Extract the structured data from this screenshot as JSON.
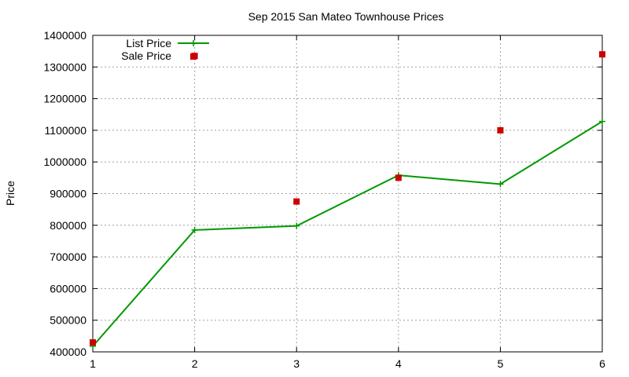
{
  "chart_data": {
    "type": "line",
    "title": "Sep 2015 San Mateo Townhouse Prices",
    "xlabel": "",
    "ylabel": "Price",
    "x": [
      1,
      2,
      3,
      4,
      5,
      6
    ],
    "xlim": [
      1,
      6
    ],
    "ylim": [
      400000,
      1400000
    ],
    "yticks": [
      400000,
      500000,
      600000,
      700000,
      800000,
      900000,
      1000000,
      1100000,
      1200000,
      1300000,
      1400000
    ],
    "xticks": [
      1,
      2,
      3,
      4,
      5,
      6
    ],
    "grid": true,
    "legend_position": "top-left",
    "series": [
      {
        "name": "List Price",
        "style": "line-with-plus-markers",
        "color": "#009900",
        "values": [
          418000,
          785000,
          798000,
          958000,
          930000,
          1128000
        ]
      },
      {
        "name": "Sale Price",
        "style": "square-markers",
        "color": "#cc0000",
        "values": [
          430000,
          1335000,
          875000,
          950000,
          1100000,
          1340000
        ]
      }
    ]
  }
}
